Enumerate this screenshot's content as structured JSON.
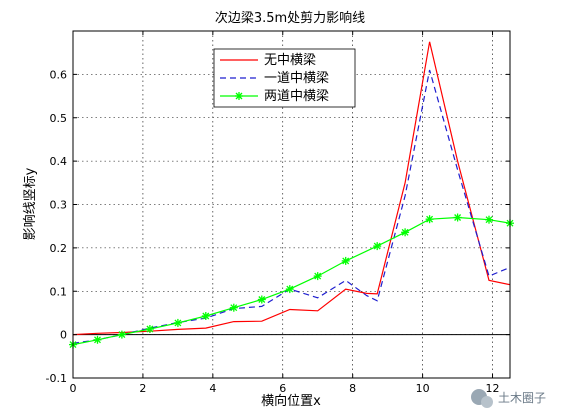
{
  "chart_data": {
    "type": "line",
    "title": "次边梁3.5m处剪力影响线",
    "xlabel": "横向位置x",
    "ylabel": "影响线竖标y",
    "xlim": [
      0,
      12.5
    ],
    "ylim": [
      -0.1,
      0.7
    ],
    "xticks": [
      "0",
      "2",
      "4",
      "6",
      "8",
      "10",
      "12"
    ],
    "yticks": [
      "-0.1",
      "0",
      "0.1",
      "0.2",
      "0.3",
      "0.4",
      "0.5",
      "0.6"
    ],
    "grid": true,
    "legend_position": "top-center",
    "series": [
      {
        "name": "无中横梁",
        "color": "#ff0000",
        "style": "solid",
        "marker": "none",
        "x": [
          0,
          0.7,
          1.4,
          2.2,
          3.0,
          3.8,
          4.6,
          5.4,
          6.2,
          7.0,
          7.8,
          8.4,
          8.7,
          9.5,
          10.2,
          11.0,
          11.9,
          12.5
        ],
        "y": [
          0.0,
          0.003,
          0.005,
          0.008,
          0.012,
          0.015,
          0.03,
          0.031,
          0.058,
          0.055,
          0.105,
          0.095,
          0.094,
          0.35,
          0.675,
          0.4,
          0.125,
          0.115
        ]
      },
      {
        "name": "一道中横梁",
        "color": "#1f1fcf",
        "style": "dashed",
        "marker": "none",
        "x": [
          0,
          0.7,
          1.4,
          2.2,
          3.0,
          3.8,
          4.6,
          5.4,
          6.2,
          7.0,
          7.8,
          8.4,
          8.7,
          9.5,
          10.2,
          11.0,
          11.9,
          12.5
        ],
        "y": [
          -0.02,
          -0.012,
          0.0,
          0.015,
          0.028,
          0.038,
          0.06,
          0.065,
          0.105,
          0.085,
          0.125,
          0.09,
          0.078,
          0.32,
          0.61,
          0.38,
          0.135,
          0.155
        ]
      },
      {
        "name": "两道中横梁",
        "color": "#00ff00",
        "style": "solid",
        "marker": "star",
        "x": [
          0,
          0.7,
          1.4,
          2.2,
          3.0,
          3.8,
          4.6,
          5.4,
          6.2,
          7.0,
          7.8,
          8.7,
          9.5,
          10.2,
          11.0,
          11.9,
          12.5
        ],
        "y": [
          -0.023,
          -0.012,
          0.0,
          0.013,
          0.027,
          0.043,
          0.062,
          0.081,
          0.105,
          0.135,
          0.17,
          0.204,
          0.236,
          0.266,
          0.27,
          0.265,
          0.257
        ]
      }
    ]
  },
  "watermark": {
    "text": "土木圈子"
  }
}
